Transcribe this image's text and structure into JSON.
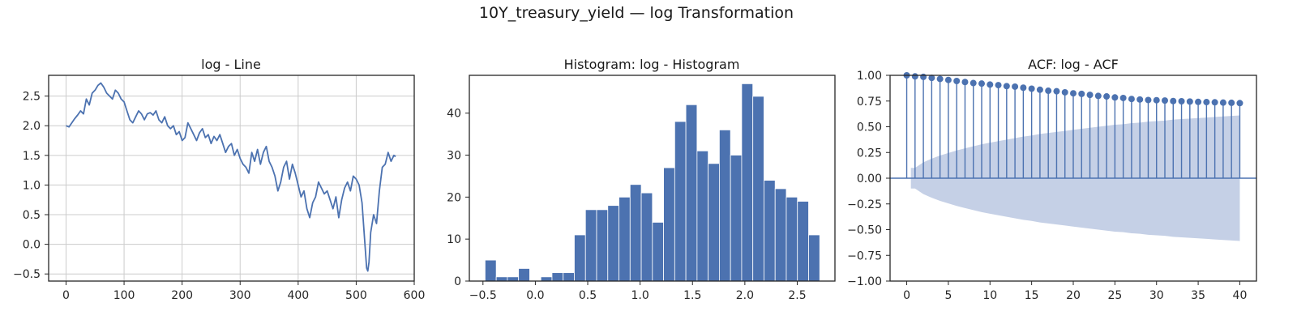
{
  "figure": {
    "suptitle": "10Y_treasury_yield — log Transformation",
    "colors": {
      "series": "#4c72b0",
      "band": "#c5d0e6",
      "frame": "#262626",
      "grid": "#cccccc"
    }
  },
  "chart_data": [
    {
      "type": "line",
      "title": "log - Line",
      "xlabel": "",
      "ylabel": "",
      "xlim": [
        -30,
        600
      ],
      "ylim": [
        -0.62,
        2.85
      ],
      "xticks": [
        0,
        100,
        200,
        300,
        400,
        500,
        600
      ],
      "yticks": [
        -0.5,
        0.0,
        0.5,
        1.0,
        1.5,
        2.0,
        2.5
      ],
      "ytick_labels": [
        "−0.5",
        "0.0",
        "0.5",
        "1.0",
        "1.5",
        "2.0",
        "2.5"
      ],
      "grid": true,
      "series": [
        {
          "x": [
            0,
            5,
            10,
            15,
            20,
            25,
            30,
            35,
            40,
            45,
            50,
            55,
            60,
            65,
            70,
            75,
            80,
            85,
            90,
            95,
            100,
            105,
            110,
            115,
            120,
            125,
            130,
            135,
            140,
            145,
            150,
            155,
            160,
            165,
            170,
            175,
            180,
            185,
            190,
            195,
            200,
            205,
            210,
            215,
            220,
            225,
            230,
            235,
            240,
            245,
            250,
            255,
            260,
            265,
            270,
            275,
            280,
            285,
            290,
            295,
            300,
            305,
            310,
            315,
            320,
            325,
            330,
            335,
            340,
            345,
            350,
            355,
            360,
            365,
            370,
            375,
            380,
            385,
            390,
            395,
            400,
            405,
            410,
            415,
            420,
            425,
            430,
            435,
            440,
            445,
            450,
            455,
            460,
            465,
            470,
            475,
            480,
            485,
            490,
            495,
            500,
            505,
            510,
            515,
            518,
            520,
            522,
            525,
            530,
            535,
            540,
            545,
            550,
            555,
            560,
            565,
            568
          ],
          "y": [
            2.0,
            1.98,
            2.05,
            2.12,
            2.18,
            2.25,
            2.2,
            2.45,
            2.35,
            2.55,
            2.6,
            2.68,
            2.72,
            2.65,
            2.55,
            2.5,
            2.45,
            2.6,
            2.55,
            2.45,
            2.4,
            2.25,
            2.1,
            2.05,
            2.15,
            2.25,
            2.2,
            2.1,
            2.2,
            2.22,
            2.18,
            2.25,
            2.1,
            2.05,
            2.15,
            2.0,
            1.95,
            2.0,
            1.85,
            1.9,
            1.75,
            1.8,
            2.05,
            1.95,
            1.85,
            1.75,
            1.88,
            1.95,
            1.8,
            1.85,
            1.7,
            1.82,
            1.75,
            1.85,
            1.7,
            1.55,
            1.65,
            1.7,
            1.5,
            1.6,
            1.45,
            1.35,
            1.3,
            1.2,
            1.55,
            1.4,
            1.6,
            1.35,
            1.55,
            1.65,
            1.4,
            1.3,
            1.15,
            0.9,
            1.05,
            1.3,
            1.4,
            1.1,
            1.35,
            1.2,
            1.0,
            0.8,
            0.9,
            0.6,
            0.45,
            0.7,
            0.8,
            1.05,
            0.95,
            0.85,
            0.9,
            0.75,
            0.6,
            0.8,
            0.45,
            0.75,
            0.95,
            1.05,
            0.9,
            1.15,
            1.1,
            1.0,
            0.7,
            0.0,
            -0.4,
            -0.45,
            -0.3,
            0.2,
            0.5,
            0.35,
            0.9,
            1.3,
            1.35,
            1.55,
            1.4,
            1.5,
            1.48
          ]
        }
      ]
    },
    {
      "type": "bar",
      "title": "Histogram: log - Histogram",
      "xlabel": "",
      "ylabel": "",
      "xlim": [
        -0.63,
        2.86
      ],
      "ylim": [
        0,
        49
      ],
      "xticks": [
        -0.5,
        0.0,
        0.5,
        1.0,
        1.5,
        2.0,
        2.5
      ],
      "xtick_labels": [
        "−0.5",
        "0.0",
        "0.5",
        "1.0",
        "1.5",
        "2.0",
        "2.5"
      ],
      "yticks": [
        0,
        10,
        20,
        30,
        40
      ],
      "grid": false,
      "bin_start": -0.48,
      "bin_width": 0.1065,
      "values": [
        5,
        1,
        1,
        3,
        0,
        1,
        2,
        2,
        11,
        17,
        17,
        18,
        20,
        23,
        21,
        14,
        27,
        38,
        42,
        31,
        28,
        36,
        30,
        47,
        44,
        24,
        22,
        20,
        19,
        11
      ]
    },
    {
      "type": "bar",
      "title": "ACF: log - ACF",
      "xlabel": "",
      "ylabel": "",
      "xlim": [
        -2,
        42
      ],
      "ylim": [
        -1.0,
        1.0
      ],
      "xticks": [
        0,
        5,
        10,
        15,
        20,
        25,
        30,
        35,
        40
      ],
      "yticks": [
        -1.0,
        -0.75,
        -0.5,
        -0.25,
        0.0,
        0.25,
        0.5,
        0.75,
        1.0
      ],
      "ytick_labels": [
        "−1.00",
        "−0.75",
        "−0.50",
        "−0.25",
        "0.00",
        "0.25",
        "0.50",
        "0.75",
        "1.00"
      ],
      "grid": false,
      "lags": [
        0,
        1,
        2,
        3,
        4,
        5,
        6,
        7,
        8,
        9,
        10,
        11,
        12,
        13,
        14,
        15,
        16,
        17,
        18,
        19,
        20,
        21,
        22,
        23,
        24,
        25,
        26,
        27,
        28,
        29,
        30,
        31,
        32,
        33,
        34,
        35,
        36,
        37,
        38,
        39,
        40
      ],
      "values": [
        1.0,
        0.99,
        0.985,
        0.975,
        0.965,
        0.955,
        0.945,
        0.935,
        0.925,
        0.92,
        0.91,
        0.905,
        0.895,
        0.89,
        0.88,
        0.87,
        0.86,
        0.85,
        0.845,
        0.835,
        0.825,
        0.82,
        0.81,
        0.8,
        0.795,
        0.785,
        0.78,
        0.77,
        0.765,
        0.76,
        0.758,
        0.755,
        0.75,
        0.748,
        0.745,
        0.742,
        0.74,
        0.738,
        0.735,
        0.733,
        0.73
      ],
      "confidence_band": [
        0.0,
        0.1,
        0.155,
        0.19,
        0.22,
        0.245,
        0.27,
        0.29,
        0.31,
        0.33,
        0.345,
        0.36,
        0.375,
        0.39,
        0.405,
        0.415,
        0.43,
        0.44,
        0.45,
        0.46,
        0.47,
        0.48,
        0.49,
        0.5,
        0.51,
        0.52,
        0.525,
        0.535,
        0.54,
        0.55,
        0.555,
        0.56,
        0.57,
        0.575,
        0.58,
        0.585,
        0.59,
        0.595,
        0.6,
        0.605,
        0.61
      ]
    }
  ]
}
